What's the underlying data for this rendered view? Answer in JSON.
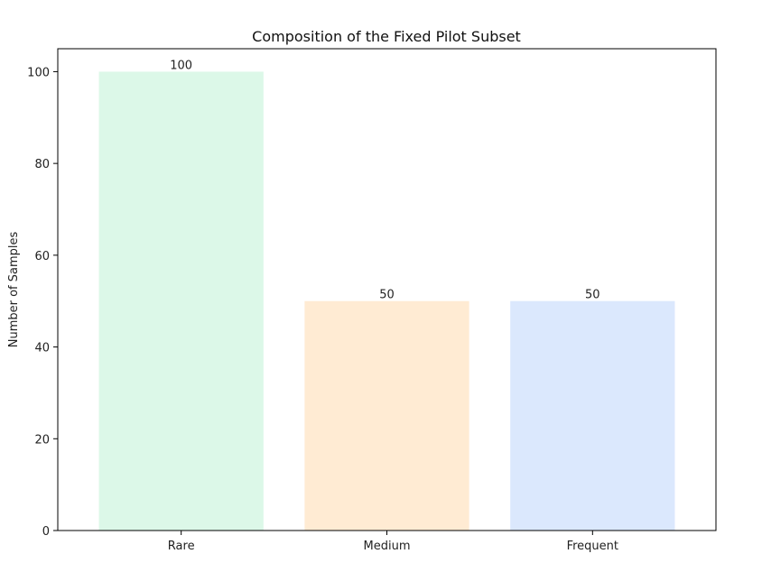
{
  "chart_data": {
    "type": "bar",
    "title": "Composition of the Fixed Pilot Subset",
    "xlabel": "",
    "ylabel": "Number of Samples",
    "categories": [
      "Rare",
      "Medium",
      "Frequent"
    ],
    "values": [
      100,
      50,
      50
    ],
    "data_labels": [
      "100",
      "50",
      "50"
    ],
    "colors": [
      "#dcf8e8",
      "#ffebd3",
      "#dbe8fd"
    ],
    "ylim": [
      0,
      105
    ],
    "yticks": [
      0,
      20,
      40,
      60,
      80,
      100
    ],
    "grid": false,
    "legend": "none"
  }
}
